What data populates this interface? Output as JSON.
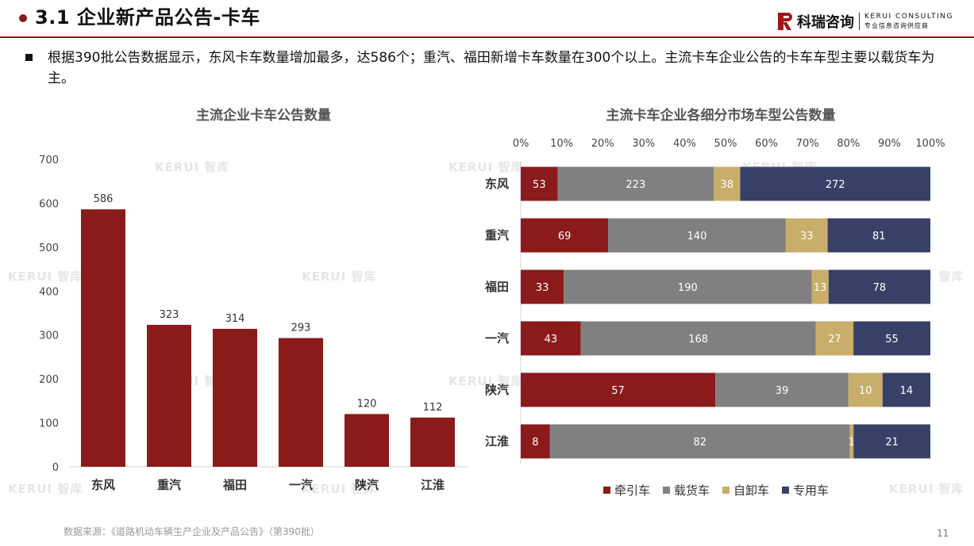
{
  "header": {
    "title": "3.1 企业新产品公告-卡车",
    "logo_cn": "科瑞咨询",
    "logo_en": "KERUI CONSULTING",
    "logo_sub": "专业信息咨询供应商"
  },
  "bullet": "根据390批公告数据显示，东风卡车数量增加最多，达586个；重汽、福田新增卡车数量在300个以上。主流卡车企业公告的卡车车型主要以载货车为主。",
  "watermark": "KERUI 智库",
  "chart_data": [
    {
      "type": "bar",
      "title": "主流企业卡车公告数量",
      "categories": [
        "东风",
        "重汽",
        "福田",
        "一汽",
        "陕汽",
        "江淮"
      ],
      "values": [
        586,
        323,
        314,
        293,
        120,
        112
      ],
      "ylim": [
        0,
        700
      ],
      "yticks": [
        "0",
        "100",
        "200",
        "300",
        "400",
        "500",
        "600",
        "700"
      ],
      "grid": false,
      "bar_color": "#8b1a1a"
    },
    {
      "type": "bar",
      "orientation": "horizontal",
      "stacked": "percent",
      "title": "主流卡车企业各细分市场车型公告数量",
      "categories": [
        "东风",
        "重汽",
        "福田",
        "一汽",
        "陕汽",
        "江淮"
      ],
      "xticks": [
        "0%",
        "10%",
        "20%",
        "30%",
        "40%",
        "50%",
        "60%",
        "70%",
        "80%",
        "90%",
        "100%"
      ],
      "series": [
        {
          "name": "牵引车",
          "color": "#8b1a1a",
          "values": [
            53,
            69,
            33,
            43,
            57,
            8
          ]
        },
        {
          "name": "载货车",
          "color": "#808080",
          "values": [
            223,
            140,
            190,
            168,
            39,
            82
          ]
        },
        {
          "name": "自卸车",
          "color": "#c9ad6a",
          "values": [
            38,
            33,
            13,
            27,
            10,
            1
          ]
        },
        {
          "name": "专用车",
          "color": "#384067",
          "values": [
            272,
            81,
            78,
            55,
            14,
            21
          ]
        }
      ],
      "legend_position": "bottom"
    }
  ],
  "source": "数据来源：《道路机动车辆生产企业及产品公告》（第390批）",
  "page_number": "11"
}
